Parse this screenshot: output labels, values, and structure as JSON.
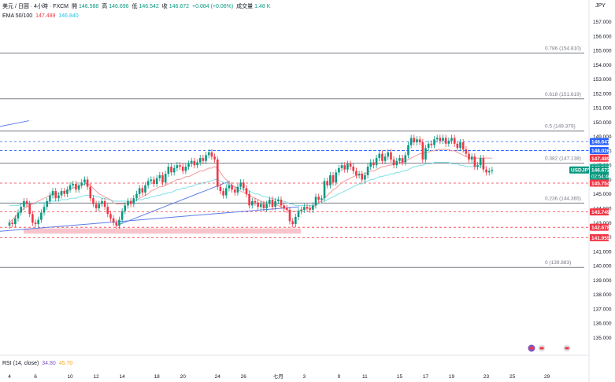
{
  "header": {
    "symbol_line": "美元 / 日圓 · 4小時 · FXCM",
    "open_label": "開",
    "open": "146.588",
    "high_label": "高",
    "high": "146.696",
    "low_label": "低",
    "low": "146.542",
    "close_label": "收",
    "close": "146.672",
    "change": "+0.084 (+0.06%)",
    "volume_label": "成交量",
    "volume": "1.48 K"
  },
  "ema_legend": {
    "label": "EMA 50/100",
    "ema50": "147.489",
    "ema100": "146.840"
  },
  "rsi_legend": {
    "label": "RSI (14, close)",
    "rsi": "34.80",
    "rsi_ma": "45.70"
  },
  "currency_label": "JPY",
  "colors": {
    "up": "#089981",
    "down": "#f23645",
    "ema50": "#f19c9b",
    "ema100": "#7fe0e6",
    "fib_line": "#787b86",
    "dashed_red": "#f23645",
    "dashed_blue": "#2962ff",
    "trend_line": "#5b7de8",
    "zone": "#f8c4cc"
  },
  "chart_data": {
    "type": "candlestick",
    "title": "",
    "y_axis": {
      "min": 134.9,
      "max": 157.4,
      "ticks": [
        "157.000",
        "156.000",
        "155.000",
        "154.000",
        "153.000",
        "152.000",
        "151.000",
        "150.000",
        "149.000",
        "148.000",
        "147.000",
        "146.000",
        "145.000",
        "144.000",
        "143.000",
        "142.000",
        "141.000",
        "140.000",
        "139.000",
        "138.000",
        "137.000",
        "136.000",
        "135.000"
      ]
    },
    "x_axis": {
      "ticks": [
        {
          "label": "4",
          "i": 0
        },
        {
          "label": "6",
          "i": 9
        },
        {
          "label": "10",
          "i": 21
        },
        {
          "label": "12",
          "i": 30
        },
        {
          "label": "14",
          "i": 39
        },
        {
          "label": "18",
          "i": 51
        },
        {
          "label": "20",
          "i": 60
        },
        {
          "label": "24",
          "i": 72
        },
        {
          "label": "26",
          "i": 81
        },
        {
          "label": "七月",
          "i": 93
        },
        {
          "label": "3",
          "i": 102
        },
        {
          "label": "9",
          "i": 114
        },
        {
          "label": "11",
          "i": 123
        },
        {
          "label": "15",
          "i": 135
        },
        {
          "label": "17",
          "i": 144
        },
        {
          "label": "19",
          "i": 153
        },
        {
          "label": "23",
          "i": 165
        },
        {
          "label": "25",
          "i": 174
        },
        {
          "label": "29",
          "i": 186
        }
      ]
    },
    "fib_levels": [
      {
        "label": "0.786 (154.810)",
        "value": 154.81
      },
      {
        "label": "0.618 (151.619)",
        "value": 151.619
      },
      {
        "label": "0.5 (149.379)",
        "value": 149.379
      },
      {
        "label": "0.382 (147.138)",
        "value": 147.138
      },
      {
        "label": "0.236 (144.365)",
        "value": 144.365
      },
      {
        "label": "0 (139.883)",
        "value": 139.883
      }
    ],
    "price_labels": [
      {
        "label": "148.647",
        "value": 148.647,
        "color": "#2962ff"
      },
      {
        "label": "148.026",
        "value": 148.026,
        "color": "#2962ff"
      },
      {
        "label": "147.489",
        "value": 147.489,
        "color": "#f23645"
      },
      {
        "label": "146.840",
        "value": 146.84,
        "color": "#22ab94"
      },
      {
        "label": "USDJPY",
        "value": 146.672,
        "color": "#089981"
      },
      {
        "label": "146.672",
        "value": 146.672,
        "color": "#089981",
        "sub": "02:54:46"
      },
      {
        "label": "145.754",
        "value": 145.754,
        "color": "#f23645"
      },
      {
        "label": "143.749",
        "value": 143.749,
        "color": "#f23645"
      },
      {
        "label": "142.678",
        "value": 142.678,
        "color": "#f23645"
      },
      {
        "label": "141.955",
        "value": 141.955,
        "color": "#f23645"
      }
    ],
    "dashed_levels": [
      {
        "value": 148.647,
        "color": "#2962ff"
      },
      {
        "value": 148.026,
        "color": "#2962ff"
      },
      {
        "value": 145.754,
        "color": "#f23645"
      },
      {
        "value": 143.749,
        "color": "#f23645"
      },
      {
        "value": 142.678,
        "color": "#f23645"
      },
      {
        "value": 141.955,
        "color": "#f23645"
      }
    ],
    "close_series": [
      143.0,
      142.9,
      143.3,
      143.7,
      144.1,
      144.5,
      144.3,
      143.6,
      143.0,
      142.9,
      143.2,
      143.7,
      144.1,
      144.5,
      144.9,
      145.2,
      144.7,
      144.9,
      145.2,
      145.0,
      145.3,
      145.6,
      145.7,
      145.3,
      145.6,
      145.8,
      146.0,
      145.5,
      144.7,
      144.3,
      144.0,
      144.3,
      144.5,
      144.1,
      143.6,
      143.3,
      143.0,
      142.8,
      143.2,
      143.8,
      144.2,
      144.5,
      144.3,
      144.7,
      145.0,
      145.4,
      145.1,
      145.6,
      145.9,
      146.0,
      145.7,
      146.1,
      146.3,
      145.8,
      146.4,
      146.9,
      146.5,
      146.8,
      147.0,
      146.9,
      146.6,
      146.9,
      147.1,
      147.3,
      147.0,
      147.2,
      147.5,
      147.3,
      147.7,
      147.9,
      147.6,
      147.4,
      145.5,
      145.2,
      144.9,
      145.4,
      145.6,
      145.3,
      145.1,
      145.5,
      145.8,
      145.4,
      145.0,
      144.2,
      144.5,
      144.4,
      144.1,
      144.3,
      144.0,
      144.3,
      144.6,
      144.1,
      144.5,
      144.6,
      144.2,
      144.0,
      143.9,
      143.1,
      142.9,
      143.4,
      143.8,
      143.9,
      144.1,
      144.0,
      143.9,
      144.2,
      144.8,
      144.6,
      144.7,
      145.9,
      145.6,
      146.3,
      145.8,
      146.5,
      146.8,
      147.0,
      146.7,
      147.1,
      146.9,
      146.6,
      146.3,
      146.4,
      146.0,
      146.3,
      146.9,
      147.2,
      147.0,
      147.5,
      147.8,
      147.3,
      147.6,
      147.9,
      147.4,
      147.0,
      147.3,
      147.5,
      147.2,
      147.7,
      148.4,
      148.9,
      148.6,
      148.8,
      148.6,
      147.4,
      148.2,
      148.5,
      148.4,
      148.8,
      148.9,
      148.7,
      148.9,
      148.5,
      148.7,
      148.9,
      148.5,
      148.2,
      148.6,
      148.1,
      147.8,
      147.4,
      147.6,
      146.9,
      147.0,
      147.5,
      146.7,
      146.5,
      146.6,
      146.672
    ],
    "ema50": [
      143.0,
      143.2,
      143.4,
      143.6,
      143.8,
      144.0,
      144.1,
      144.2,
      144.3,
      144.4,
      144.5,
      144.6,
      144.7,
      144.8,
      144.9,
      145.0,
      145.0,
      145.0,
      145.1,
      145.2,
      145.2,
      145.3,
      145.4,
      145.5,
      145.5,
      145.6,
      145.7,
      145.7,
      145.6,
      145.4,
      145.2,
      145.0,
      144.9,
      144.8,
      144.7,
      144.6,
      144.4,
      144.3,
      144.3,
      144.3,
      144.3,
      144.4,
      144.4,
      144.5,
      144.6,
      144.7,
      144.8,
      144.9,
      145.0,
      145.2,
      145.3,
      145.4,
      145.5,
      145.5,
      145.6,
      145.7,
      145.8,
      145.9,
      146.0,
      146.0,
      146.1,
      146.2,
      146.2,
      146.3,
      146.4,
      146.5,
      146.6,
      146.6,
      146.7,
      146.8,
      146.8,
      146.9,
      146.8,
      146.5,
      146.2,
      146.0,
      145.8,
      145.6,
      145.5,
      145.3,
      145.2,
      145.1,
      145.0,
      144.9,
      144.8,
      144.7,
      144.6,
      144.5,
      144.4,
      144.4,
      144.4,
      144.3,
      144.3,
      144.2,
      144.1,
      144.0,
      143.9,
      143.8,
      143.8,
      143.8,
      143.8,
      143.9,
      143.9,
      144.0,
      144.0,
      144.1,
      144.2,
      144.4,
      144.5,
      144.7,
      144.9,
      145.1,
      145.3,
      145.4,
      145.6,
      145.8,
      145.9,
      146.0,
      146.1,
      146.2,
      146.3,
      146.3,
      146.4,
      146.4,
      146.5,
      146.6,
      146.6,
      146.7,
      146.8,
      146.9,
      146.9,
      147.0,
      147.0,
      147.1,
      147.1,
      147.2,
      147.2,
      147.3,
      147.4,
      147.5,
      147.6,
      147.7,
      147.8,
      147.8,
      147.9,
      147.9,
      148.0,
      148.0,
      148.1,
      148.1,
      148.1,
      148.1,
      148.1,
      148.0,
      148.0,
      147.9,
      147.8,
      147.7,
      147.6,
      147.5,
      147.5,
      147.5,
      147.5,
      147.5,
      147.5,
      147.5,
      147.5,
      147.489
    ],
    "ema100": [
      144.2,
      144.2,
      144.2,
      144.2,
      144.3,
      144.3,
      144.3,
      144.3,
      144.3,
      144.3,
      144.4,
      144.4,
      144.4,
      144.4,
      144.5,
      144.5,
      144.5,
      144.5,
      144.6,
      144.6,
      144.6,
      144.7,
      144.7,
      144.7,
      144.8,
      144.8,
      144.9,
      144.9,
      144.9,
      144.9,
      144.8,
      144.8,
      144.7,
      144.7,
      144.6,
      144.6,
      144.5,
      144.5,
      144.5,
      144.5,
      144.5,
      144.5,
      144.5,
      144.5,
      144.6,
      144.6,
      144.6,
      144.7,
      144.7,
      144.8,
      144.8,
      144.9,
      144.9,
      145.0,
      145.0,
      145.1,
      145.1,
      145.2,
      145.3,
      145.3,
      145.4,
      145.4,
      145.5,
      145.5,
      145.6,
      145.7,
      145.7,
      145.8,
      145.8,
      145.9,
      145.9,
      146.0,
      146.0,
      145.9,
      145.8,
      145.7,
      145.6,
      145.6,
      145.5,
      145.4,
      145.4,
      145.3,
      145.3,
      145.2,
      145.1,
      145.0,
      145.0,
      144.9,
      144.8,
      144.8,
      144.7,
      144.7,
      144.6,
      144.6,
      144.5,
      144.5,
      144.4,
      144.3,
      144.3,
      144.2,
      144.2,
      144.2,
      144.2,
      144.2,
      144.2,
      144.2,
      144.3,
      144.3,
      144.4,
      144.5,
      144.6,
      144.7,
      144.8,
      144.9,
      145.0,
      145.1,
      145.2,
      145.3,
      145.4,
      145.5,
      145.6,
      145.7,
      145.7,
      145.8,
      145.9,
      146.0,
      146.0,
      146.1,
      146.2,
      146.2,
      146.3,
      146.3,
      146.4,
      146.4,
      146.5,
      146.5,
      146.6,
      146.6,
      146.7,
      146.8,
      146.9,
      146.9,
      147.0,
      147.0,
      147.1,
      147.1,
      147.1,
      147.2,
      147.2,
      147.2,
      147.2,
      147.2,
      147.2,
      147.1,
      147.1,
      147.1,
      147.0,
      147.0,
      146.9,
      146.9,
      146.9,
      146.9,
      146.9,
      146.9,
      146.9,
      146.84
    ]
  }
}
